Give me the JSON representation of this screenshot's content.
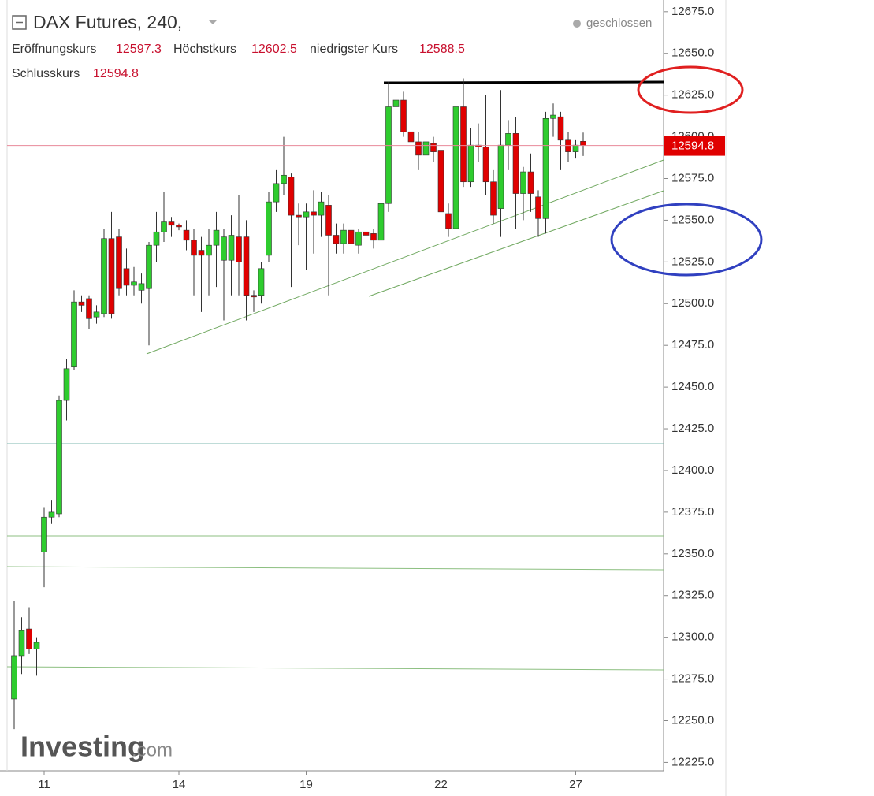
{
  "chart_data": {
    "type": "candlestick",
    "title": "DAX Futures, 240,",
    "status": "geschlossen",
    "ohlc_labels": [
      "Eröffnungskurs",
      "Höchstkurs",
      "niedrigster Kurs",
      "Schlusskurs"
    ],
    "watermark": [
      "Investing",
      ".com"
    ],
    "up_color": "#2ecc2e",
    "down_color": "#e00000",
    "categories": [
      null,
      null,
      null,
      null,
      "11",
      null,
      null,
      null,
      null,
      null,
      null,
      null,
      null,
      null,
      null,
      null,
      null,
      null,
      null,
      null,
      null,
      null,
      "14",
      null,
      null,
      null,
      null,
      null,
      null,
      null,
      null,
      null,
      null,
      null,
      null,
      null,
      null,
      null,
      null,
      "19",
      null,
      null,
      null,
      null,
      null,
      null,
      null,
      null,
      null,
      null,
      null,
      null,
      null,
      null,
      null,
      null,
      null,
      "22",
      null,
      null,
      null,
      null,
      null,
      null,
      null,
      null,
      null,
      null,
      null,
      null,
      null,
      null,
      null,
      null,
      null,
      "27",
      null
    ],
    "open": [
      12263,
      12289,
      12305,
      12293,
      12351,
      12372,
      12374,
      12442,
      12462,
      12501,
      12503,
      12492,
      12494,
      12539,
      12540,
      12521,
      12511,
      12508,
      12509,
      12535,
      12543,
      12549,
      12547,
      12544,
      12538,
      12532,
      12529,
      12535,
      12526,
      12526,
      12540,
      12540,
      12505,
      12505,
      12529,
      12561,
      12572,
      12576,
      12553,
      12552,
      12555,
      12553,
      12559,
      12541,
      12536,
      12544,
      12535,
      12543,
      12542,
      12538,
      12560,
      12618,
      12622,
      12603,
      12597,
      12589,
      12596,
      12592,
      12554,
      12545,
      12618,
      12573,
      12595,
      12594,
      12573,
      12557,
      12595,
      12602,
      12566,
      12579,
      12564,
      12551,
      12611,
      12612,
      12598,
      12591,
      12597.3
    ],
    "high": [
      12322,
      12312,
      12318,
      12300,
      12378,
      12382,
      12445,
      12467,
      12508,
      12505,
      12505,
      12499,
      12545,
      12555,
      12545,
      12533,
      12522,
      12518,
      12537,
      12555,
      12567,
      12552,
      12548,
      12550,
      12545,
      12540,
      12545,
      12555,
      12545,
      12553,
      12565,
      12550,
      12508,
      12525,
      12567,
      12580,
      12600,
      12578,
      12560,
      12560,
      12568,
      12567,
      12565,
      12548,
      12548,
      12550,
      12545,
      12580,
      12545,
      12565,
      12633,
      12633,
      12627,
      12610,
      12603,
      12605,
      12600,
      12598,
      12560,
      12625,
      12635,
      12605,
      12608,
      12625,
      12580,
      12628,
      12610,
      12612,
      12582,
      12590,
      12568,
      12615,
      12620,
      12615,
      12603,
      12598,
      12602.5
    ],
    "low": [
      12245,
      12278,
      12290,
      12277,
      12330,
      12368,
      12372,
      12430,
      12460,
      12495,
      12485,
      12488,
      12492,
      12491,
      12505,
      12505,
      12505,
      12500,
      12475,
      12525,
      12537,
      12540,
      12544,
      12532,
      12505,
      12495,
      12505,
      12510,
      12490,
      12505,
      12505,
      12490,
      12495,
      12500,
      12525,
      12555,
      12565,
      12510,
      12535,
      12520,
      12530,
      12540,
      12505,
      12530,
      12530,
      12530,
      12530,
      12530,
      12533,
      12535,
      12555,
      12610,
      12600,
      12575,
      12580,
      12585,
      12585,
      12545,
      12540,
      12540,
      12570,
      12570,
      12585,
      12565,
      12548,
      12540,
      12580,
      12545,
      12550,
      12555,
      12540,
      12542,
      12600,
      12580,
      12585,
      12587,
      12588.5
    ],
    "close": [
      12289,
      12304,
      12293,
      12297,
      12372,
      12375,
      12442,
      12461,
      12501,
      12499,
      12491,
      12495,
      12539,
      12494,
      12509,
      12511,
      12513,
      12512,
      12535,
      12543,
      12549,
      12547,
      12546,
      12538,
      12529,
      12529,
      12535,
      12544,
      12540,
      12541,
      12525,
      12505,
      12504,
      12521,
      12561,
      12572,
      12577,
      12553,
      12552,
      12555,
      12553,
      12561,
      12541,
      12536,
      12544,
      12536,
      12543,
      12541,
      12538,
      12560,
      12618,
      12622,
      12603,
      12597,
      12589,
      12597,
      12591,
      12555,
      12545,
      12618,
      12573,
      12595,
      12594,
      12573,
      12553,
      12595,
      12602,
      12566,
      12579,
      12566,
      12551,
      12611,
      12613,
      12598,
      12591,
      12595,
      12594.8
    ],
    "ylim": [
      12220,
      12682
    ],
    "yticks": [
      {
        "value": 12225,
        "label": "12225.0"
      },
      {
        "value": 12250,
        "label": "12250.0"
      },
      {
        "value": 12275,
        "label": "12275.0"
      },
      {
        "value": 12300,
        "label": "12300.0"
      },
      {
        "value": 12325,
        "label": "12325.0"
      },
      {
        "value": 12350,
        "label": "12350.0"
      },
      {
        "value": 12375,
        "label": "12375.0"
      },
      {
        "value": 12400,
        "label": "12400.0"
      },
      {
        "value": 12425,
        "label": "12425.0"
      },
      {
        "value": 12450,
        "label": "12450.0"
      },
      {
        "value": 12475,
        "label": "12475.0"
      },
      {
        "value": 12500,
        "label": "12500.0"
      },
      {
        "value": 12525,
        "label": "12525.0"
      },
      {
        "value": 12550,
        "label": "12550.0"
      },
      {
        "value": 12575,
        "label": "12575.0"
      },
      {
        "value": 12600,
        "label": "12600.0"
      },
      {
        "value": 12625,
        "label": "12625.0"
      },
      {
        "value": 12650,
        "label": "12650.0"
      },
      {
        "value": 12675,
        "label": "12675.0"
      }
    ],
    "grid": false
  }
}
